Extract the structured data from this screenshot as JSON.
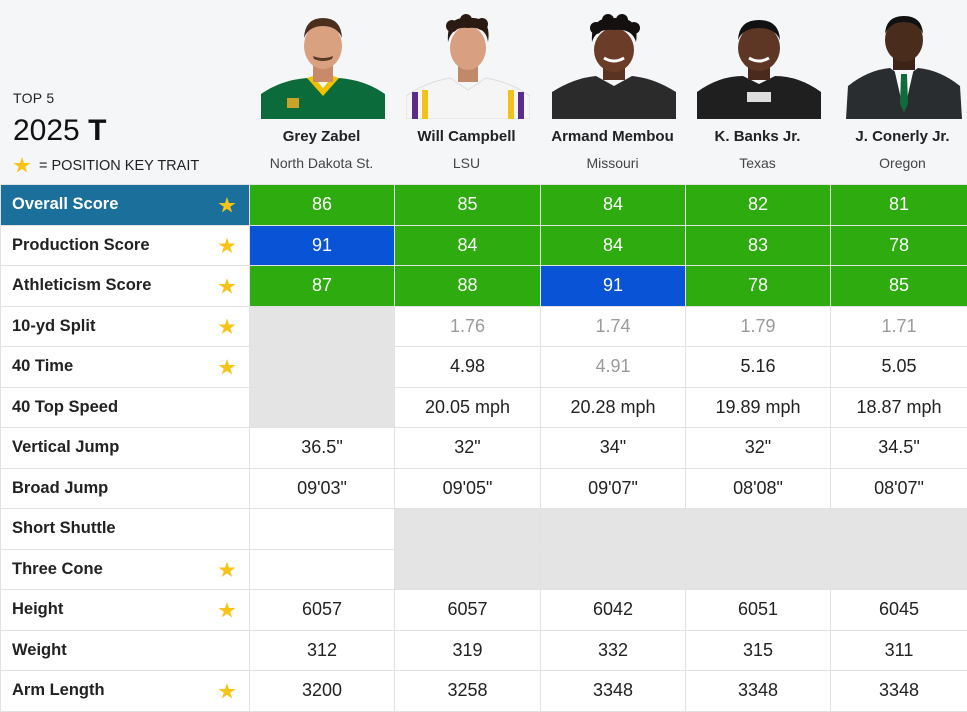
{
  "header": {
    "top_label": "TOP 5",
    "year": "2025",
    "position": "T",
    "key_trait_label": "= POSITION KEY TRAIT"
  },
  "players": [
    {
      "name": "Grey Zabel",
      "school": "North Dakota St."
    },
    {
      "name": "Will Campbell",
      "school": "LSU"
    },
    {
      "name": "Armand Membou",
      "school": "Missouri"
    },
    {
      "name": "K. Banks Jr.",
      "school": "Texas"
    },
    {
      "name": "J. Conerly Jr.",
      "school": "Oregon"
    }
  ],
  "rows": [
    {
      "label": "Overall Score",
      "key": true,
      "values": [
        "86",
        "85",
        "84",
        "82",
        "81"
      ],
      "styles": [
        "green",
        "green",
        "green",
        "green",
        "green"
      ]
    },
    {
      "label": "Production Score",
      "key": true,
      "values": [
        "91",
        "84",
        "84",
        "83",
        "78"
      ],
      "styles": [
        "blue",
        "green",
        "green",
        "green",
        "green"
      ]
    },
    {
      "label": "Athleticism Score",
      "key": true,
      "values": [
        "87",
        "88",
        "91",
        "78",
        "85"
      ],
      "styles": [
        "green",
        "green",
        "blue",
        "green",
        "green"
      ]
    },
    {
      "label": "10-yd Split",
      "key": true,
      "values": [
        "",
        "1.76",
        "1.74",
        "1.79",
        "1.71"
      ],
      "styles": [
        "gray",
        "faded",
        "faded",
        "faded",
        "faded"
      ]
    },
    {
      "label": "40 Time",
      "key": true,
      "values": [
        "",
        "4.98",
        "4.91",
        "5.16",
        "5.05"
      ],
      "styles": [
        "gray",
        "",
        "faded",
        "",
        ""
      ]
    },
    {
      "label": "40 Top Speed",
      "key": false,
      "values": [
        "",
        "20.05 mph",
        "20.28 mph",
        "19.89 mph",
        "18.87 mph"
      ],
      "styles": [
        "gray",
        "",
        "",
        "",
        ""
      ]
    },
    {
      "label": "Vertical Jump",
      "key": false,
      "values": [
        "36.5\"",
        "32\"",
        "34\"",
        "32\"",
        "34.5\""
      ],
      "styles": [
        "",
        "",
        "",
        "",
        ""
      ]
    },
    {
      "label": "Broad Jump",
      "key": false,
      "values": [
        "09'03\"",
        "09'05\"",
        "09'07\"",
        "08'08\"",
        "08'07\""
      ],
      "styles": [
        "",
        "",
        "",
        "",
        ""
      ]
    },
    {
      "label": "Short Shuttle",
      "key": false,
      "values": [
        "",
        "",
        "",
        "",
        ""
      ],
      "styles": [
        "",
        "gray",
        "gray",
        "gray",
        "gray"
      ]
    },
    {
      "label": "Three Cone",
      "key": true,
      "values": [
        "",
        "",
        "",
        "",
        ""
      ],
      "styles": [
        "",
        "gray",
        "gray",
        "gray",
        "gray"
      ]
    },
    {
      "label": "Height",
      "key": true,
      "values": [
        "6057",
        "6057",
        "6042",
        "6051",
        "6045"
      ],
      "styles": [
        "",
        "",
        "",
        "",
        ""
      ]
    },
    {
      "label": "Weight",
      "key": false,
      "values": [
        "312",
        "319",
        "332",
        "315",
        "311"
      ],
      "styles": [
        "",
        "",
        "",
        "",
        ""
      ]
    },
    {
      "label": "Arm Length",
      "key": true,
      "values": [
        "3200",
        "3258",
        "3348",
        "3348",
        "3348"
      ],
      "styles": [
        "",
        "",
        "",
        "",
        ""
      ]
    }
  ],
  "colors": {
    "header_bg": "#f4f6f7",
    "highlight_label": "#1a6f9b",
    "score_green": "#2eab0f",
    "score_blue": "#0954d6",
    "missing_gray": "#e4e4e4",
    "star": "#f7c316"
  }
}
